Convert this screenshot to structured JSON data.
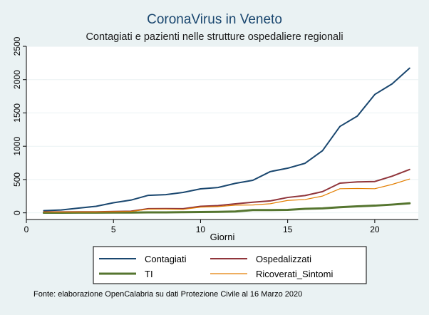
{
  "chart_data": {
    "type": "line",
    "title": "CoronaVirus in Veneto",
    "subtitle": "Contagiati e pazienti nelle strutture ospedaliere regionali",
    "xlabel": "Giorni",
    "ylabel": "",
    "xlim": [
      0,
      22.5
    ],
    "ylim": [
      -100,
      2500
    ],
    "xticks": [
      0,
      5,
      10,
      15,
      20
    ],
    "yticks": [
      0,
      500,
      1000,
      1500,
      2000,
      2500
    ],
    "grid": true,
    "legend_position": "bottom",
    "x": [
      1,
      2,
      3,
      4,
      5,
      6,
      7,
      8,
      9,
      10,
      11,
      12,
      13,
      14,
      15,
      16,
      17,
      18,
      19,
      20,
      21,
      22
    ],
    "series": [
      {
        "name": "Contagiati",
        "color": "#1a476f",
        "values": [
          33,
          43,
          71,
          98,
          151,
          191,
          263,
          273,
          307,
          360,
          380,
          443,
          488,
          619,
          670,
          744,
          933,
          1297,
          1453,
          1777,
          1937,
          2172
        ]
      },
      {
        "name": "Ospedalizzati",
        "color": "#90353b",
        "values": [
          14,
          14,
          15,
          15,
          20,
          25,
          62,
          63,
          62,
          98,
          109,
          135,
          160,
          179,
          231,
          260,
          319,
          446,
          464,
          470,
          551,
          651
        ]
      },
      {
        "name": "TI",
        "color": "#55752f",
        "values": [
          1,
          2,
          3,
          3,
          4,
          4,
          7,
          7,
          10,
          12,
          15,
          20,
          42,
          42,
          45,
          60,
          67,
          84,
          98,
          108,
          124,
          143
        ]
      },
      {
        "name": "Ricoverati_Sintomi",
        "color": "#e37e00",
        "values": [
          13,
          12,
          12,
          12,
          16,
          21,
          55,
          56,
          52,
          86,
          94,
          115,
          118,
          137,
          186,
          200,
          252,
          362,
          366,
          362,
          427,
          508
        ]
      }
    ],
    "source_note": "Fonte: elaborazione OpenCalabria su dati Protezione Civile al 16 Marzo 2020"
  }
}
